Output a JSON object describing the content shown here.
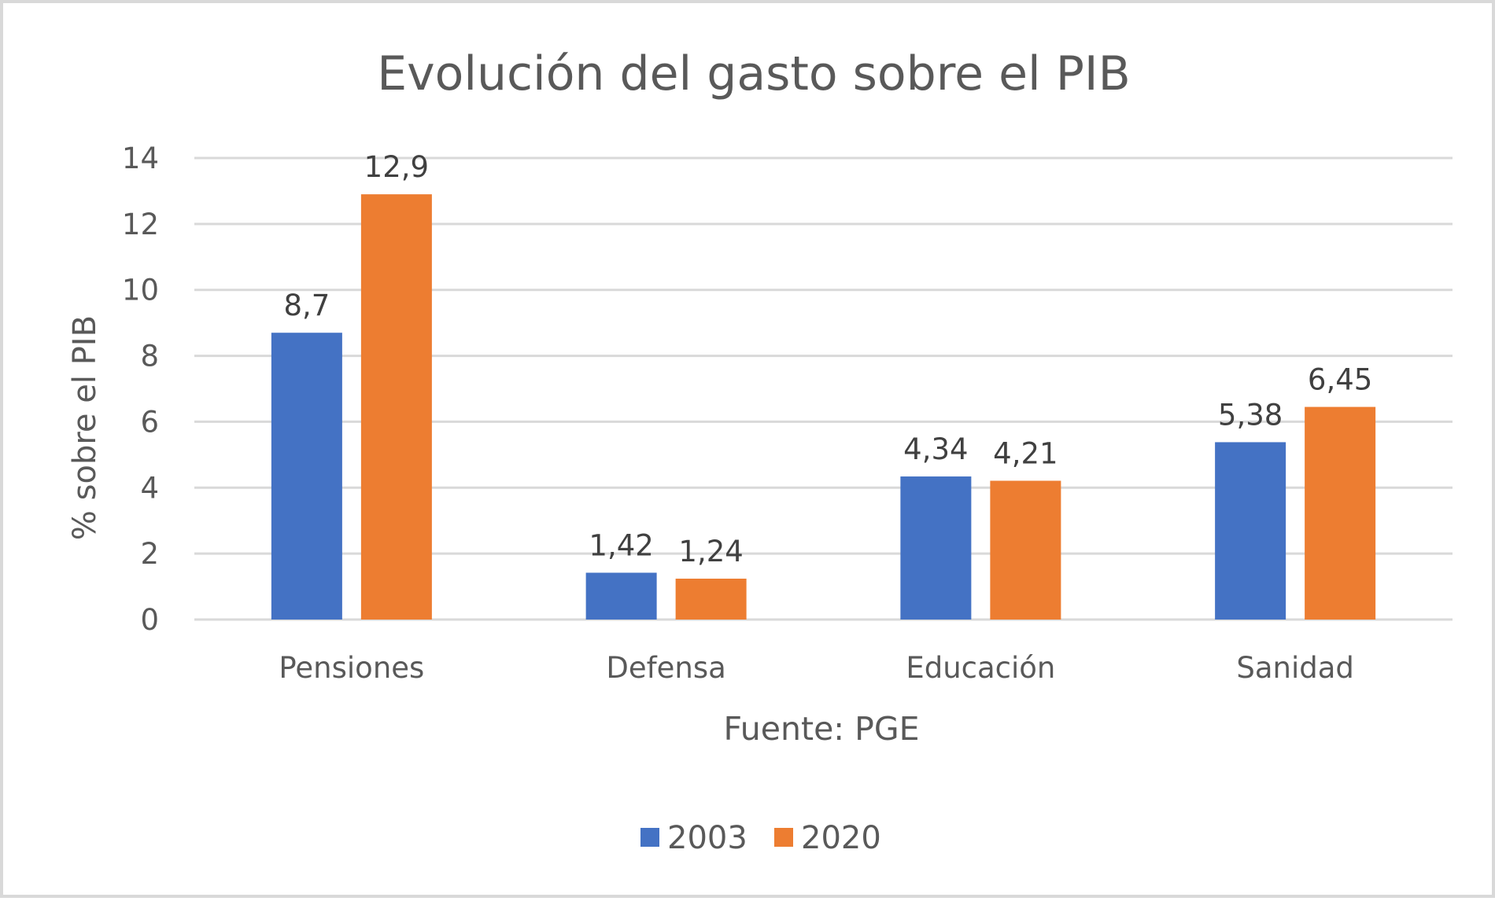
{
  "chart_data": {
    "type": "bar",
    "title": "Evolución del gasto sobre el PIB",
    "xlabel": "Fuente: PGE",
    "ylabel": "% sobre el PIB",
    "ylim": [
      0,
      14
    ],
    "yticks": [
      0,
      2,
      4,
      6,
      8,
      10,
      12,
      14
    ],
    "grid": true,
    "legend_position": "bottom",
    "categories": [
      "Pensiones",
      "Defensa",
      "Educación",
      "Sanidad"
    ],
    "series": [
      {
        "name": "2003",
        "color": "#4472c4",
        "values": [
          8.7,
          1.42,
          4.34,
          5.38
        ],
        "labels": [
          "8,7",
          "1,42",
          "4,34",
          "5,38"
        ]
      },
      {
        "name": "2020",
        "color": "#ed7d31",
        "values": [
          12.9,
          1.24,
          4.21,
          6.45
        ],
        "labels": [
          "12,9",
          "1,24",
          "4,21",
          "6,45"
        ]
      }
    ]
  }
}
